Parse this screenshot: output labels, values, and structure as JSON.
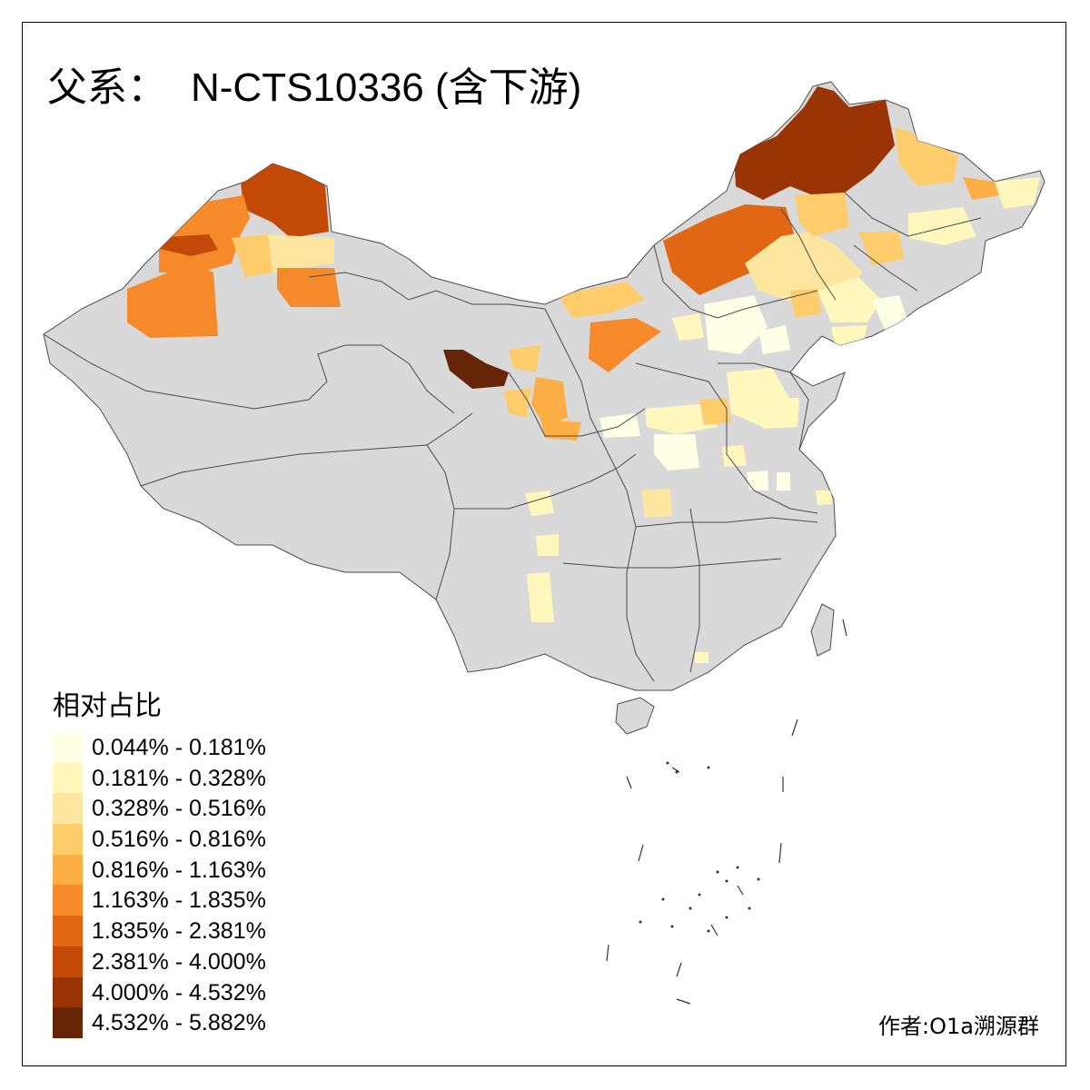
{
  "title": {
    "prefix": "父系：",
    "haplogroup": "N-CTS10336 (含下游)"
  },
  "legend": {
    "title": "相对占比",
    "items": [
      {
        "label": "0.044% - 0.181%",
        "color": "#FFFFE5"
      },
      {
        "label": "0.181% - 0.328%",
        "color": "#FFF7BC"
      },
      {
        "label": "0.328% - 0.516%",
        "color": "#FEE6A0"
      },
      {
        "label": "0.516% - 0.816%",
        "color": "#FECC6A"
      },
      {
        "label": "0.816% - 1.163%",
        "color": "#FDAE45"
      },
      {
        "label": "1.163% - 1.835%",
        "color": "#F68A2A"
      },
      {
        "label": "1.835% - 2.381%",
        "color": "#E26714"
      },
      {
        "label": "2.381% - 4.000%",
        "color": "#C24A06"
      },
      {
        "label": "4.000% - 4.532%",
        "color": "#9A3405"
      },
      {
        "label": "4.532% - 5.882%",
        "color": "#662506"
      }
    ]
  },
  "author": "作者:O1a溯源群",
  "map": {
    "base_color": "#D9D9D9",
    "border_color": "#555555"
  }
}
